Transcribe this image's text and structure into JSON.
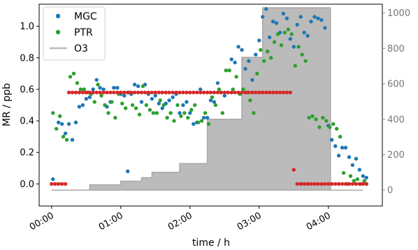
{
  "chart_data": {
    "type": "scatter",
    "xlabel": "time / h",
    "ylabel": "MR / ppb",
    "xlim": [
      -0.18,
      4.78
    ],
    "ylim": [
      -0.14,
      1.14
    ],
    "x_ticks": [
      0,
      1,
      2,
      3,
      4
    ],
    "x_tick_labels": [
      "00:00",
      "01:00",
      "02:00",
      "03:00",
      "04:00"
    ],
    "y_ticks": [
      0.0,
      0.2,
      0.4,
      0.6,
      0.8,
      1.0
    ],
    "y_tick_labels": [
      "0.0",
      "0.2",
      "0.4",
      "0.6",
      "0.8",
      "1.0"
    ],
    "y2_lim": [
      -90,
      1050
    ],
    "y2_ticks": [
      0,
      200,
      400,
      600,
      800,
      1000
    ],
    "y2_tick_labels": [
      "0",
      "200",
      "400",
      "600",
      "800",
      "1000"
    ],
    "legend": {
      "position": "top-left",
      "entries": [
        "MGC",
        "PTR",
        "O3"
      ]
    },
    "series": [
      {
        "name": "MGC",
        "kind": "scatter",
        "color": "#1f77b4",
        "x": [
          0.02,
          0.05,
          0.1,
          0.15,
          0.2,
          0.25,
          0.3,
          0.35,
          0.4,
          0.45,
          0.5,
          0.55,
          0.6,
          0.65,
          0.7,
          0.75,
          0.8,
          0.85,
          0.9,
          0.95,
          1.0,
          1.05,
          1.1,
          1.15,
          1.2,
          1.25,
          1.3,
          1.35,
          1.4,
          1.45,
          1.5,
          1.55,
          1.6,
          1.65,
          1.7,
          1.75,
          1.8,
          1.85,
          1.9,
          1.95,
          2.0,
          2.05,
          2.1,
          2.15,
          2.2,
          2.25,
          2.3,
          2.35,
          2.4,
          2.45,
          2.5,
          2.55,
          2.6,
          2.65,
          2.7,
          2.75,
          2.8,
          2.85,
          2.9,
          2.95,
          3.0,
          3.05,
          3.1,
          3.15,
          3.2,
          3.25,
          3.3,
          3.35,
          3.4,
          3.45,
          3.5,
          3.55,
          3.6,
          3.65,
          3.7,
          3.75,
          3.8,
          3.85,
          3.9,
          3.95,
          4.0,
          4.05,
          4.1,
          4.15,
          4.2,
          4.25,
          4.3,
          4.35,
          4.4,
          4.45,
          4.5,
          4.55
        ],
        "y": [
          0.03,
          0.0,
          0.39,
          0.38,
          0.32,
          0.38,
          0.28,
          0.39,
          0.49,
          0.5,
          0.54,
          0.55,
          0.6,
          0.66,
          0.61,
          0.6,
          0.49,
          0.52,
          0.61,
          0.61,
          0.57,
          0.56,
          0.08,
          0.57,
          0.63,
          0.62,
          0.52,
          0.63,
          0.57,
          0.54,
          0.56,
          0.51,
          0.48,
          0.51,
          0.53,
          0.55,
          0.57,
          0.45,
          0.5,
          0.52,
          0.45,
          0.38,
          0.39,
          0.6,
          0.42,
          0.42,
          0.53,
          0.52,
          0.64,
          0.58,
          0.56,
          0.58,
          0.79,
          0.77,
          0.87,
          0.85,
          0.73,
          0.78,
          0.66,
          0.82,
          0.91,
          1.06,
          1.11,
          0.93,
          1.03,
          1.02,
          0.96,
          1.08,
          1.05,
          0.92,
          0.87,
          1.01,
          1.06,
          0.96,
          0.94,
          1.03,
          1.06,
          1.05,
          1.04,
          0.99,
          0.37,
          0.28,
          0.24,
          0.18,
          0.23,
          0.23,
          0.17,
          0.12,
          0.16,
          0.09,
          0.05,
          0.04
        ]
      },
      {
        "name": "PTR",
        "kind": "scatter",
        "color": "#2ca02c",
        "x": [
          0.02,
          0.07,
          0.12,
          0.17,
          0.22,
          0.27,
          0.32,
          0.37,
          0.42,
          0.47,
          0.52,
          0.57,
          0.62,
          0.67,
          0.72,
          0.77,
          0.82,
          0.87,
          0.92,
          0.97,
          1.02,
          1.07,
          1.12,
          1.17,
          1.22,
          1.27,
          1.32,
          1.37,
          1.42,
          1.47,
          1.52,
          1.57,
          1.62,
          1.67,
          1.72,
          1.77,
          1.82,
          1.87,
          1.92,
          1.97,
          2.02,
          2.07,
          2.12,
          2.17,
          2.22,
          2.27,
          2.32,
          2.37,
          2.42,
          2.47,
          2.52,
          2.57,
          2.62,
          2.67,
          2.72,
          2.77,
          2.82,
          2.87,
          2.92,
          2.97,
          3.02,
          3.07,
          3.12,
          3.17,
          3.22,
          3.27,
          3.32,
          3.37,
          3.42,
          3.47,
          3.52,
          3.57,
          3.62,
          3.67,
          3.72,
          3.77,
          3.82,
          3.87,
          3.92,
          3.97,
          4.02,
          4.07,
          4.12,
          4.17,
          4.22,
          4.27,
          4.32,
          4.37,
          4.42,
          4.47,
          4.52,
          4.55
        ],
        "y": [
          0.45,
          0.35,
          0.43,
          0.3,
          0.28,
          0.68,
          0.7,
          0.64,
          0.6,
          0.6,
          0.58,
          0.57,
          0.52,
          0.63,
          0.56,
          0.5,
          0.45,
          0.52,
          0.42,
          0.57,
          0.51,
          0.48,
          0.58,
          0.5,
          0.48,
          0.44,
          0.62,
          0.5,
          0.47,
          0.45,
          0.45,
          0.53,
          0.5,
          0.42,
          0.45,
          0.4,
          0.5,
          0.43,
          0.45,
          0.42,
          0.47,
          0.5,
          0.39,
          0.4,
          0.45,
          0.38,
          0.55,
          0.5,
          0.6,
          0.45,
          0.72,
          0.72,
          0.6,
          0.68,
          0.57,
          0.6,
          0.58,
          0.53,
          0.45,
          0.7,
          0.85,
          0.78,
          0.84,
          0.8,
          0.9,
          0.95,
          0.88,
          0.96,
          0.98,
          0.95,
          0.75,
          0.87,
          0.82,
          0.78,
          0.42,
          0.43,
          0.41,
          0.36,
          0.42,
          0.4,
          0.36,
          0.38,
          0.35,
          0.3,
          0.07,
          0.0,
          0.05,
          0.02,
          0.03,
          0.0,
          0.02,
          0.0
        ]
      },
      {
        "name": "",
        "kind": "scatter",
        "color": "#d62728",
        "x": [
          0.0,
          0.05,
          0.1,
          0.15,
          0.2,
          0.25,
          0.3,
          0.35,
          0.4,
          0.45,
          0.5,
          0.55,
          0.6,
          0.65,
          0.7,
          0.75,
          0.8,
          0.85,
          0.9,
          0.95,
          1.0,
          1.05,
          1.1,
          1.15,
          1.2,
          1.25,
          1.3,
          1.35,
          1.4,
          1.45,
          1.5,
          1.55,
          1.6,
          1.65,
          1.7,
          1.75,
          1.8,
          1.85,
          1.9,
          1.95,
          2.0,
          2.05,
          2.1,
          2.15,
          2.2,
          2.25,
          2.3,
          2.35,
          2.4,
          2.45,
          2.5,
          2.55,
          2.6,
          2.65,
          2.7,
          2.75,
          2.8,
          2.85,
          2.9,
          2.95,
          3.0,
          3.05,
          3.1,
          3.15,
          3.2,
          3.25,
          3.3,
          3.35,
          3.4,
          3.45,
          3.5,
          3.55,
          3.6,
          3.65,
          3.7,
          3.75,
          3.8,
          3.85,
          3.9,
          3.95,
          4.0,
          4.05,
          4.1,
          4.15,
          4.2,
          4.25,
          4.3,
          4.35,
          4.4,
          4.45,
          4.5,
          4.55
        ],
        "y": [
          0.0,
          0.0,
          0.0,
          0.0,
          0.0,
          0.58,
          0.58,
          0.58,
          0.58,
          0.58,
          0.58,
          0.58,
          0.58,
          0.58,
          0.58,
          0.58,
          0.58,
          0.58,
          0.58,
          0.58,
          0.58,
          0.58,
          0.58,
          0.58,
          0.58,
          0.58,
          0.58,
          0.58,
          0.58,
          0.58,
          0.58,
          0.58,
          0.58,
          0.58,
          0.58,
          0.58,
          0.58,
          0.58,
          0.58,
          0.58,
          0.58,
          0.58,
          0.58,
          0.58,
          0.58,
          0.58,
          0.58,
          0.58,
          0.58,
          0.58,
          0.58,
          0.58,
          0.58,
          0.58,
          0.58,
          0.58,
          0.58,
          0.58,
          0.58,
          0.58,
          0.58,
          0.58,
          0.58,
          0.58,
          0.58,
          0.58,
          0.58,
          0.58,
          0.58,
          0.58,
          0.09,
          0.0,
          0.0,
          0.0,
          0.0,
          0.0,
          0.0,
          0.0,
          0.0,
          0.0,
          0.0,
          0.0,
          0.0,
          0.0,
          0.0,
          0.0,
          0.0,
          0.0,
          0.0,
          0.0,
          0.0,
          0.0
        ]
      },
      {
        "name": "O3",
        "kind": "area",
        "axis": "right",
        "color": "#bbbbbb",
        "x": [
          0.0,
          0.55,
          0.55,
          1.0,
          1.0,
          1.3,
          1.3,
          1.45,
          1.45,
          1.85,
          1.85,
          2.25,
          2.25,
          2.75,
          2.75,
          3.05,
          3.05,
          4.03,
          4.03,
          4.5
        ],
        "y": [
          0,
          0,
          30,
          30,
          50,
          50,
          70,
          70,
          100,
          100,
          150,
          150,
          400,
          400,
          750,
          750,
          1030,
          1030,
          0,
          0
        ]
      }
    ]
  }
}
